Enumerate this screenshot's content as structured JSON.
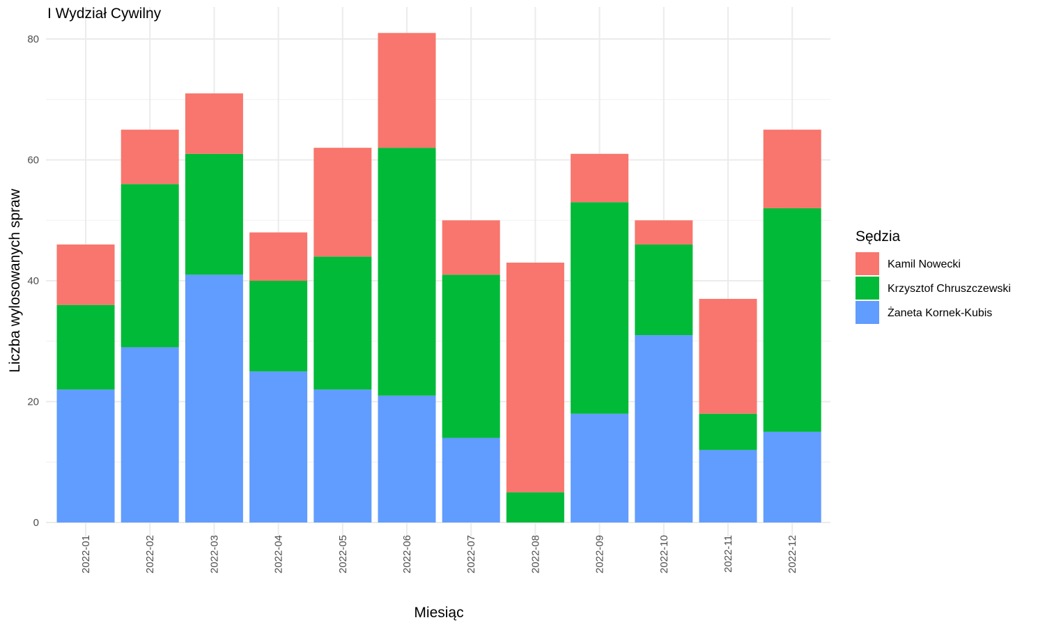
{
  "chart_data": {
    "type": "bar",
    "stacked": true,
    "title": "I Wydział Cywilny",
    "xlabel": "Miesiąc",
    "ylabel": "Liczba wylosowanych spraw",
    "categories": [
      "2022-01",
      "2022-02",
      "2022-03",
      "2022-04",
      "2022-05",
      "2022-06",
      "2022-07",
      "2022-08",
      "2022-09",
      "2022-10",
      "2022-11",
      "2022-12"
    ],
    "series": [
      {
        "name": "Żaneta Kornek-Kubis",
        "color": "#619CFF",
        "values": [
          22,
          29,
          41,
          25,
          22,
          21,
          14,
          0,
          18,
          31,
          12,
          15
        ]
      },
      {
        "name": "Krzysztof Chruszczewski",
        "color": "#00BA38",
        "values": [
          14,
          27,
          20,
          15,
          22,
          41,
          27,
          5,
          35,
          15,
          6,
          37
        ]
      },
      {
        "name": "Kamil Nowecki",
        "color": "#F8766D",
        "values": [
          10,
          9,
          10,
          8,
          18,
          19,
          9,
          38,
          8,
          4,
          19,
          13
        ]
      }
    ],
    "ylim": [
      0,
      84
    ],
    "yticks": [
      0,
      20,
      40,
      60,
      80
    ],
    "grid": true,
    "legend": {
      "title": "Sędzia",
      "position": "right",
      "entries": [
        "Kamil Nowecki",
        "Krzysztof Chruszczewski",
        "Żaneta Kornek-Kubis"
      ]
    }
  }
}
